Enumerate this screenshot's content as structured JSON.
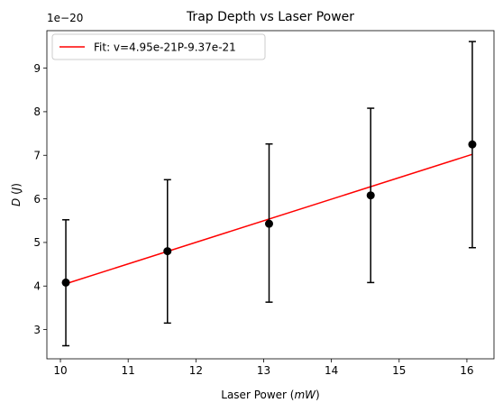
{
  "chart_data": {
    "type": "scatter",
    "title": "Trap Depth vs Laser Power",
    "xlabel_prefix": "Laser Power (",
    "xlabel_var": "mW",
    "xlabel_suffix": ")",
    "ylabel_var": "D",
    "ylabel_mid": " (",
    "ylabel_unit": "J",
    "ylabel_suffix": ")",
    "y_offset_text": "1e−20",
    "y_scale": 1e-20,
    "xlim": [
      9.8,
      16.4
    ],
    "ylim": [
      2.33,
      9.86
    ],
    "xticks": [
      10,
      11,
      12,
      13,
      14,
      15,
      16
    ],
    "yticks": [
      3,
      4,
      5,
      6,
      7,
      8,
      9
    ],
    "grid": false,
    "legend_position": "upper-left",
    "points": [
      {
        "x": 10.08,
        "y": 4.08,
        "err_low": 2.63,
        "err_high": 5.52
      },
      {
        "x": 11.58,
        "y": 4.8,
        "err_low": 3.15,
        "err_high": 6.44
      },
      {
        "x": 13.08,
        "y": 5.43,
        "err_low": 3.63,
        "err_high": 7.26
      },
      {
        "x": 14.58,
        "y": 6.08,
        "err_low": 4.08,
        "err_high": 8.08
      },
      {
        "x": 16.08,
        "y": 7.25,
        "err_low": 4.88,
        "err_high": 9.61
      }
    ],
    "fit": {
      "label": "Fit: v=4.95e-21P-9.37e-21",
      "slope": 0.495,
      "intercept": -0.937,
      "x_range": [
        10.08,
        16.08
      ],
      "color": "#ff0000"
    },
    "point_color": "#000000"
  }
}
